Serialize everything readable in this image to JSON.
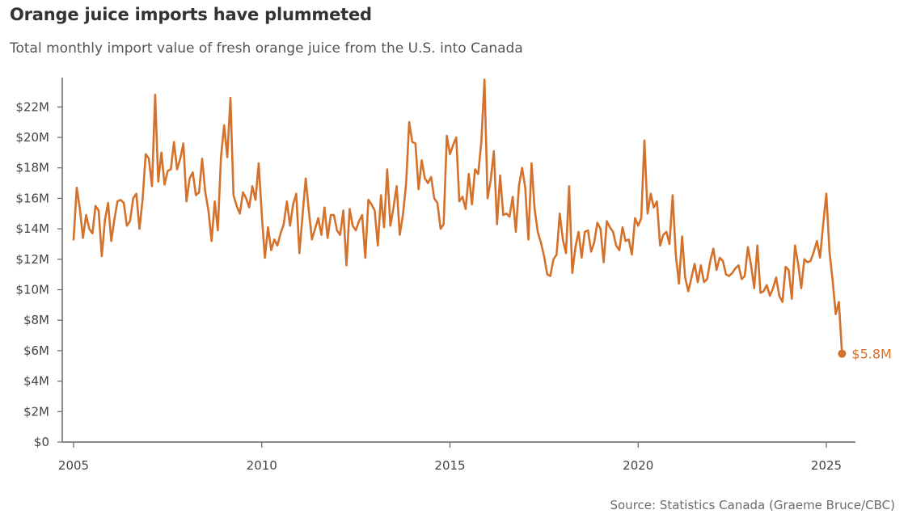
{
  "header": {
    "title": "Orange juice imports have plummeted",
    "subtitle": "Total monthly import value of fresh orange juice from the U.S. into Canada"
  },
  "footer": {
    "source": "Source: Statistics Canada (Graeme Bruce/CBC)"
  },
  "colors": {
    "line": "#d4722b",
    "axis": "#666666",
    "text": "#444444"
  },
  "chart_data": {
    "type": "line",
    "title": "Orange juice imports have plummeted",
    "subtitle": "Total monthly import value of fresh orange juice from the U.S. into Canada",
    "xlabel": "",
    "ylabel": "",
    "x_range": [
      2005,
      2025.5
    ],
    "ylim": [
      0,
      24
    ],
    "y_unit": "millions of dollars",
    "grid": false,
    "legend": "none",
    "x_ticks": [
      {
        "value": 2005,
        "label": "2005"
      },
      {
        "value": 2010,
        "label": "2010"
      },
      {
        "value": 2015,
        "label": "2015"
      },
      {
        "value": 2020,
        "label": "2020"
      },
      {
        "value": 2025,
        "label": "2025"
      }
    ],
    "y_ticks": [
      {
        "value": 0,
        "label": "$0"
      },
      {
        "value": 2,
        "label": "$2M"
      },
      {
        "value": 4,
        "label": "$4M"
      },
      {
        "value": 6,
        "label": "$6M"
      },
      {
        "value": 8,
        "label": "$8M"
      },
      {
        "value": 10,
        "label": "$10M"
      },
      {
        "value": 12,
        "label": "$12M"
      },
      {
        "value": 14,
        "label": "$14M"
      },
      {
        "value": 16,
        "label": "$16M"
      },
      {
        "value": 18,
        "label": "$18M"
      },
      {
        "value": 20,
        "label": "$20M"
      },
      {
        "value": 22,
        "label": "$22M"
      }
    ],
    "series": [
      {
        "start_year": 2005,
        "start_month": 1,
        "values": [
          13.3,
          16.7,
          15.3,
          13.4,
          14.9,
          14.0,
          13.7,
          15.5,
          15.2,
          12.2,
          14.6,
          15.7,
          13.2,
          14.6,
          15.8,
          15.9,
          15.7,
          14.2,
          14.5,
          16.0,
          16.3,
          14.0,
          15.9,
          18.9,
          18.6,
          16.8,
          22.8,
          17.1,
          19.0,
          16.9,
          17.8,
          17.9,
          19.7,
          17.9,
          18.6,
          19.6,
          15.8,
          17.3,
          17.7,
          16.2,
          16.4,
          18.6,
          16.4,
          15.2,
          13.2,
          15.8,
          13.9,
          18.7,
          20.8,
          18.7,
          22.6,
          16.2,
          15.5,
          15.0,
          16.4,
          16.0,
          15.4,
          16.8,
          15.9,
          18.3,
          14.9,
          12.1,
          14.1,
          12.6,
          13.3,
          12.9,
          13.7,
          14.3,
          15.8,
          14.2,
          15.6,
          16.3,
          12.4,
          14.9,
          17.3,
          15.2,
          13.3,
          14.0,
          14.7,
          13.6,
          15.4,
          13.4,
          14.9,
          14.9,
          13.9,
          13.6,
          15.2,
          11.6,
          15.3,
          14.2,
          13.9,
          14.5,
          14.9,
          12.1,
          15.9,
          15.6,
          15.2,
          12.9,
          16.2,
          14.1,
          17.9,
          14.2,
          15.4,
          16.8,
          13.6,
          14.9,
          16.9,
          21.0,
          19.7,
          19.6,
          16.6,
          18.5,
          17.3,
          17.0,
          17.4,
          16.0,
          15.7,
          14.0,
          14.3,
          20.1,
          18.9,
          19.5,
          20.0,
          15.8,
          16.1,
          15.3,
          17.6,
          15.6,
          17.9,
          17.6,
          19.7,
          23.8,
          16.0,
          17.2,
          19.1,
          14.3,
          17.5,
          14.9,
          15.0,
          14.8,
          16.1,
          13.8,
          16.8,
          18.0,
          16.7,
          13.3,
          18.3,
          15.3,
          13.8,
          13.1,
          12.2,
          11.0,
          10.9,
          12.0,
          12.3,
          15.0,
          13.3,
          12.4,
          16.8,
          11.1,
          12.8,
          13.8,
          12.1,
          13.8,
          13.9,
          12.5,
          13.1,
          14.4,
          14.0,
          11.8,
          14.5,
          14.1,
          13.8,
          12.9,
          12.6,
          14.1,
          13.2,
          13.3,
          12.3,
          14.7,
          14.2,
          14.7,
          19.8,
          15.0,
          16.3,
          15.4,
          15.8,
          12.9,
          13.6,
          13.8,
          13.0,
          16.2,
          12.3,
          10.4,
          13.5,
          10.8,
          9.9,
          10.8,
          11.7,
          10.5,
          11.6,
          10.5,
          10.7,
          11.9,
          12.7,
          11.3,
          12.1,
          11.9,
          11.0,
          10.9,
          11.1,
          11.4,
          11.6,
          10.7,
          10.9,
          12.8,
          11.6,
          10.1,
          12.9,
          9.8,
          9.9,
          10.3,
          9.6,
          10.1,
          10.8,
          9.6,
          9.2,
          11.5,
          11.3,
          9.4,
          12.9,
          11.7,
          10.1,
          12.0,
          11.8,
          11.9,
          12.5,
          13.2,
          12.1,
          14.3,
          16.3,
          12.5,
          10.6,
          8.4,
          9.2,
          5.8
        ],
        "end_value": 5.8,
        "end_label": "$5.8M"
      }
    ]
  }
}
